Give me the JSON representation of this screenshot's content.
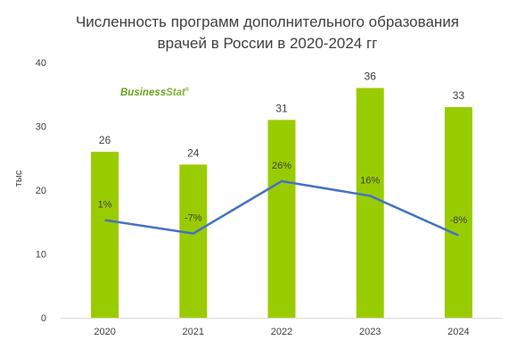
{
  "chart_data": {
    "type": "bar",
    "title_line1": "Численность программ дополнительного образования",
    "title_line2": "врачей в России в 2020-2024 гг",
    "ylabel": "тыс",
    "xlabel": "",
    "ylim": [
      0,
      40
    ],
    "yticks": [
      "0",
      "10",
      "20",
      "30",
      "40"
    ],
    "grid": false,
    "categories": [
      "2020",
      "2021",
      "2022",
      "2023",
      "2024"
    ],
    "series": [
      {
        "values": [
          26,
          24,
          31,
          36,
          33
        ],
        "value_labels": [
          "26",
          "24",
          "31",
          "36",
          "33"
        ],
        "color": "#99cc00"
      },
      {
        "type": "line",
        "values": [
          15.3,
          13.2,
          21.4,
          19.1,
          12.9
        ],
        "point_labels": [
          "1%",
          "-7%",
          "26%",
          "16%",
          "-8%"
        ],
        "color": "#4472c4"
      }
    ]
  },
  "logo": {
    "text_a": "Business",
    "text_b": "Stat",
    "mark": "®",
    "color_a": "#6aa121",
    "color_b": "#7fb33a"
  },
  "colors": {
    "text": "#404040",
    "axis": "#d9d9d9"
  }
}
